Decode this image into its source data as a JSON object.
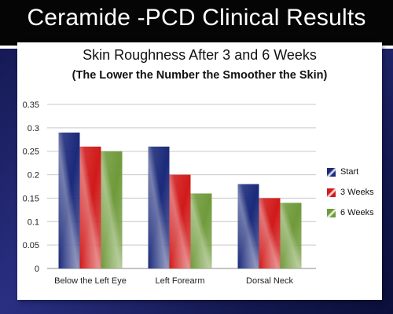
{
  "banner": {
    "title": "Ceramide -PCD Clinical Results"
  },
  "chart_data": {
    "type": "bar",
    "title": "Skin Roughness After 3 and 6 Weeks",
    "subtitle": "(The Lower the Number the Smoother the Skin)",
    "xlabel": "",
    "ylabel": "",
    "categories": [
      "Below the Left Eye",
      "Left Forearm",
      "Dorsal Neck"
    ],
    "series": [
      {
        "name": "Start",
        "values": [
          0.29,
          0.26,
          0.18
        ],
        "color": "#1b2a7a"
      },
      {
        "name": "3 Weeks",
        "values": [
          0.26,
          0.2,
          0.15
        ],
        "color": "#d11a1a"
      },
      {
        "name": "6 Weeks",
        "values": [
          0.25,
          0.16,
          0.14
        ],
        "color": "#6f9a3a"
      }
    ],
    "ylim": [
      0,
      0.35
    ],
    "yticks": [
      "0",
      "0.05",
      "0.1",
      "0.15",
      "0.2",
      "0.25",
      "0.3",
      "0.35"
    ],
    "grid": true,
    "legend_position": "right"
  }
}
